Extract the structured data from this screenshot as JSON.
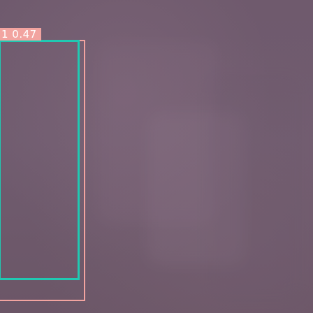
{
  "detections": [
    {
      "label_text": "1 0.47",
      "colors": {
        "box": "#f2a4a0",
        "inner_box": "#20c9b2"
      }
    }
  ],
  "colors": {
    "background": "#6e5a6b",
    "label_text": "#ffffff"
  }
}
